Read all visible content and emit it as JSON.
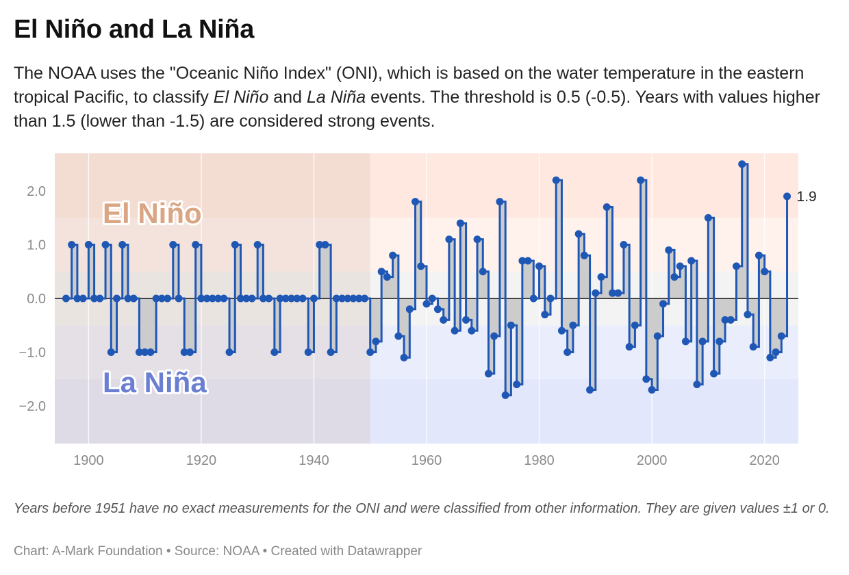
{
  "header": {
    "title": "El Niño and La Niña",
    "desc_part1": "The NOAA uses the \"Oceanic Niño Index\" (ONI), which is based on the water temperature in the eastern tropical Pacific, to classify ",
    "desc_el_nino": "El Niño",
    "desc_and": " and ",
    "desc_la_nina": "La Niña",
    "desc_part2": " events. The threshold is 0.5 (-0.5). Years with values higher than 1.5 (lower than -1.5) are considered strong events."
  },
  "footer": {
    "note": "Years before 1951 have no exact measurements for the ONI and were classified from other information. They are given values ±1 or 0.",
    "credit": "Chart: A-Mark Foundation • Source: NOAA • Created with Datawrapper"
  },
  "chart_data": {
    "type": "line",
    "step": true,
    "area_fill_to_zero": true,
    "x": [
      1896,
      1897,
      1898,
      1899,
      1900,
      1901,
      1902,
      1903,
      1904,
      1905,
      1906,
      1907,
      1908,
      1909,
      1910,
      1911,
      1912,
      1913,
      1914,
      1915,
      1916,
      1917,
      1918,
      1919,
      1920,
      1921,
      1922,
      1923,
      1924,
      1925,
      1926,
      1927,
      1928,
      1929,
      1930,
      1931,
      1932,
      1933,
      1934,
      1935,
      1936,
      1937,
      1938,
      1939,
      1940,
      1941,
      1942,
      1943,
      1944,
      1945,
      1946,
      1947,
      1948,
      1949,
      1950,
      1951,
      1952,
      1953,
      1954,
      1955,
      1956,
      1957,
      1958,
      1959,
      1960,
      1961,
      1962,
      1963,
      1964,
      1965,
      1966,
      1967,
      1968,
      1969,
      1970,
      1971,
      1972,
      1973,
      1974,
      1975,
      1976,
      1977,
      1978,
      1979,
      1980,
      1981,
      1982,
      1983,
      1984,
      1985,
      1986,
      1987,
      1988,
      1989,
      1990,
      1991,
      1992,
      1993,
      1994,
      1995,
      1996,
      1997,
      1998,
      1999,
      2000,
      2001,
      2002,
      2003,
      2004,
      2005,
      2006,
      2007,
      2008,
      2009,
      2010,
      2011,
      2012,
      2013,
      2014,
      2015,
      2016,
      2017,
      2018,
      2019,
      2020,
      2021,
      2022,
      2023,
      2024
    ],
    "values": [
      0,
      1,
      0,
      0,
      1,
      0,
      0,
      1,
      -1,
      0,
      1,
      0,
      0,
      -1,
      -1,
      -1,
      0,
      0,
      0,
      1,
      0,
      -1,
      -1,
      1,
      0,
      0,
      0,
      0,
      0,
      -1,
      1,
      0,
      0,
      0,
      1,
      0,
      0,
      -1,
      0,
      0,
      0,
      0,
      0,
      -1,
      0,
      1,
      1,
      -1,
      0,
      0,
      0,
      0,
      0,
      0,
      -1,
      -0.8,
      0.5,
      0.4,
      0.8,
      -0.7,
      -1.1,
      -0.2,
      1.8,
      0.6,
      -0.1,
      0,
      -0.2,
      -0.4,
      1.1,
      -0.6,
      1.4,
      -0.4,
      -0.6,
      1.1,
      0.5,
      -1.4,
      -0.7,
      1.8,
      -1.8,
      -0.5,
      -1.6,
      0.7,
      0.7,
      0,
      0.6,
      -0.3,
      0,
      2.2,
      -0.6,
      -1,
      -0.5,
      1.2,
      0.8,
      -1.7,
      0.1,
      0.4,
      1.7,
      0.1,
      0.1,
      1,
      -0.9,
      -0.5,
      2.2,
      -1.5,
      -1.7,
      -0.7,
      -0.1,
      0.9,
      0.4,
      0.6,
      -0.8,
      0.7,
      -1.6,
      -0.8,
      1.5,
      -1.4,
      -0.8,
      -0.4,
      -0.4,
      0.6,
      2.5,
      -0.3,
      -0.9,
      0.8,
      0.5,
      -1.1,
      -1,
      -0.7,
      1.9
    ],
    "xlim": [
      1894,
      2026
    ],
    "ylim": [
      -2.7,
      2.7
    ],
    "x_ticks": [
      "1900",
      "1920",
      "1940",
      "1960",
      "1980",
      "2000",
      "2020"
    ],
    "y_ticks": [
      "2.0",
      "1.0",
      "0.0",
      "−1.0",
      "−2.0"
    ],
    "last_value_label": "1.9",
    "band_labels": {
      "el_nino": "El Niño",
      "la_nina": "La Niña"
    },
    "estimated_until": 1950,
    "thresholds": {
      "weak": 0.5,
      "strong": 1.5
    },
    "grid": true,
    "colors": {
      "line": "#1f57b5",
      "fill": "#cccccc",
      "el_nino_label": "#d9a583",
      "la_nina_label": "#6a7fd1",
      "el_nino_strong": "#ffe8df",
      "el_nino_weak": "#fff2ed",
      "neutral": "#f3f3f3",
      "la_nina_weak": "#eaedfb",
      "la_nina_strong": "#e3e7fb",
      "historical_overlay": "#d4bfb0"
    }
  }
}
